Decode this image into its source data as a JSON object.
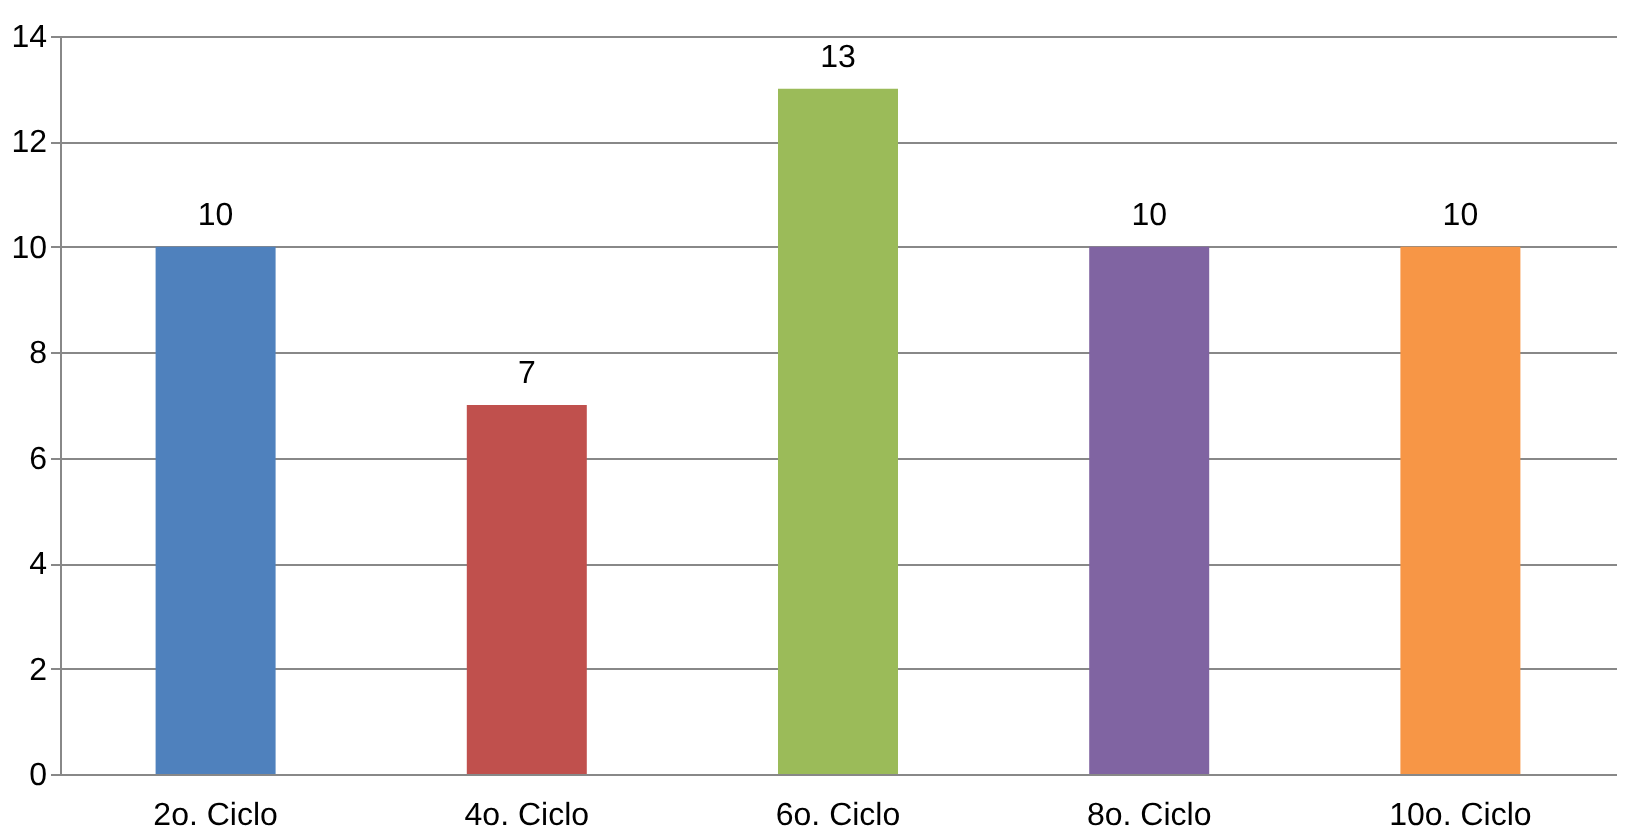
{
  "chart_data": {
    "type": "bar",
    "categories": [
      "2o. Ciclo",
      "4o. Ciclo",
      "6o. Ciclo",
      "8o. Ciclo",
      "10o. Ciclo"
    ],
    "values": [
      10,
      7,
      13,
      10,
      10
    ],
    "colors": [
      "#4f81bd",
      "#c0504d",
      "#9bbb59",
      "#8064a2",
      "#f79646"
    ],
    "ylim": [
      0,
      14
    ],
    "yticks": [
      0,
      2,
      4,
      6,
      8,
      10,
      12,
      14
    ],
    "grid": "y",
    "data_labels": true
  }
}
